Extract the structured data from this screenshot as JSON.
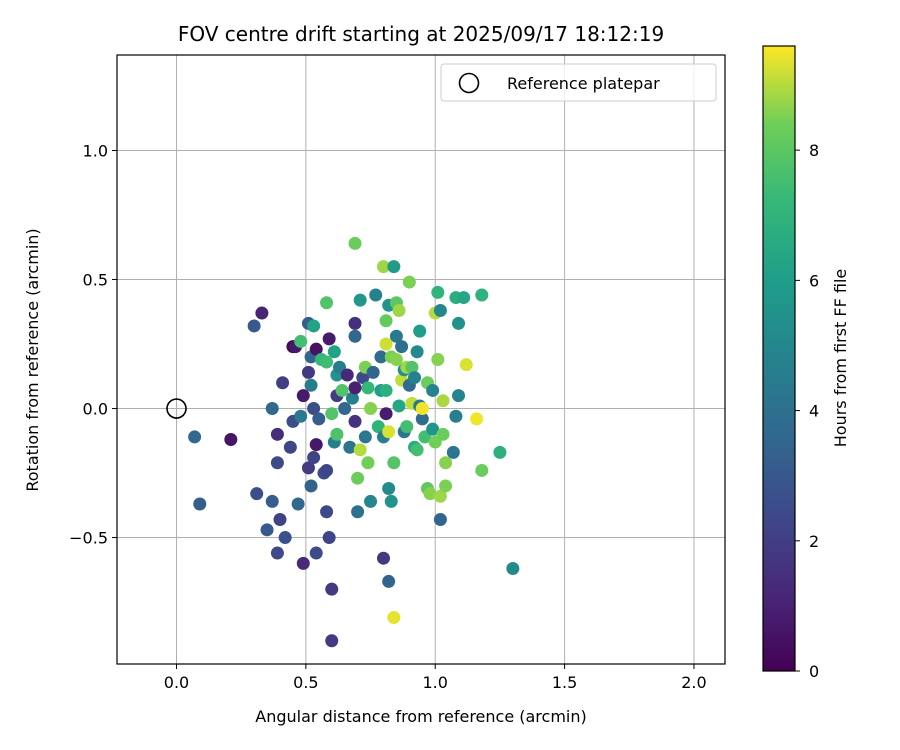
{
  "chart_data": {
    "type": "scatter",
    "title": "FOV centre drift starting at 2025/09/17 18:12:19",
    "xlabel": "Angular distance from reference (arcmin)",
    "ylabel": "Rotation from reference (arcmin)",
    "xlim": [
      -0.23,
      2.12
    ],
    "ylim": [
      -0.99,
      1.37
    ],
    "x_ticks": [
      0.0,
      0.5,
      1.0,
      1.5,
      2.0
    ],
    "x_tick_labels": [
      "0.0",
      "0.5",
      "1.0",
      "1.5",
      "2.0"
    ],
    "y_ticks": [
      -0.5,
      0.0,
      0.5,
      1.0
    ],
    "y_tick_labels": [
      "−0.5",
      "0.0",
      "0.5",
      "1.0"
    ],
    "grid": true,
    "colormap": "viridis",
    "colorbar": {
      "label": "Hours from first FF file",
      "range": [
        0,
        9.6
      ],
      "ticks": [
        0,
        2,
        4,
        6,
        8
      ],
      "tick_labels": [
        "0",
        "2",
        "4",
        "6",
        "8"
      ]
    },
    "legend": {
      "placement": "top-right",
      "entries": [
        "Reference platepar"
      ]
    },
    "reference_point": {
      "x": 0.0,
      "y": 0.0
    },
    "points": [
      {
        "x": 0.07,
        "y": -0.11,
        "h": 3.6
      },
      {
        "x": 0.09,
        "y": -0.37,
        "h": 3.2
      },
      {
        "x": 0.21,
        "y": -0.12,
        "h": 0.6
      },
      {
        "x": 0.3,
        "y": 0.32,
        "h": 3.0
      },
      {
        "x": 0.33,
        "y": 0.37,
        "h": 1.1
      },
      {
        "x": 0.31,
        "y": -0.33,
        "h": 2.6
      },
      {
        "x": 0.35,
        "y": -0.47,
        "h": 3.1
      },
      {
        "x": 0.37,
        "y": -0.36,
        "h": 3.2
      },
      {
        "x": 0.37,
        "y": 0.0,
        "h": 3.6
      },
      {
        "x": 0.39,
        "y": -0.1,
        "h": 1.4
      },
      {
        "x": 0.39,
        "y": -0.21,
        "h": 2.5
      },
      {
        "x": 0.4,
        "y": -0.43,
        "h": 2.2
      },
      {
        "x": 0.39,
        "y": -0.56,
        "h": 2.4
      },
      {
        "x": 0.41,
        "y": 0.1,
        "h": 2.0
      },
      {
        "x": 0.42,
        "y": -0.5,
        "h": 2.7
      },
      {
        "x": 0.44,
        "y": -0.15,
        "h": 2.3
      },
      {
        "x": 0.45,
        "y": -0.05,
        "h": 2.6
      },
      {
        "x": 0.45,
        "y": 0.24,
        "h": 0.2
      },
      {
        "x": 0.46,
        "y": 0.24,
        "h": 0.7
      },
      {
        "x": 0.47,
        "y": -0.37,
        "h": 3.6
      },
      {
        "x": 0.48,
        "y": 0.26,
        "h": 7.5
      },
      {
        "x": 0.48,
        "y": -0.03,
        "h": 4.4
      },
      {
        "x": 0.49,
        "y": 0.05,
        "h": 0.8
      },
      {
        "x": 0.49,
        "y": -0.6,
        "h": 1.3
      },
      {
        "x": 0.51,
        "y": 0.33,
        "h": 3.2
      },
      {
        "x": 0.51,
        "y": 0.14,
        "h": 1.8
      },
      {
        "x": 0.51,
        "y": -0.23,
        "h": 1.9
      },
      {
        "x": 0.52,
        "y": 0.2,
        "h": 3.5
      },
      {
        "x": 0.52,
        "y": -0.3,
        "h": 3.4
      },
      {
        "x": 0.52,
        "y": 0.09,
        "h": 4.5
      },
      {
        "x": 0.53,
        "y": 0.32,
        "h": 6.2
      },
      {
        "x": 0.53,
        "y": -0.19,
        "h": 2.2
      },
      {
        "x": 0.53,
        "y": 0.0,
        "h": 2.6
      },
      {
        "x": 0.54,
        "y": 0.23,
        "h": 0.5
      },
      {
        "x": 0.54,
        "y": -0.14,
        "h": 0.7
      },
      {
        "x": 0.54,
        "y": -0.56,
        "h": 2.5
      },
      {
        "x": 0.55,
        "y": -0.04,
        "h": 3.2
      },
      {
        "x": 0.56,
        "y": 0.19,
        "h": 7.2
      },
      {
        "x": 0.57,
        "y": -0.25,
        "h": 2.6
      },
      {
        "x": 0.58,
        "y": 0.18,
        "h": 7.4
      },
      {
        "x": 0.58,
        "y": 0.41,
        "h": 7.8
      },
      {
        "x": 0.58,
        "y": -0.24,
        "h": 2.3
      },
      {
        "x": 0.58,
        "y": -0.4,
        "h": 2.4
      },
      {
        "x": 0.59,
        "y": 0.27,
        "h": 0.8
      },
      {
        "x": 0.59,
        "y": -0.5,
        "h": 2.3
      },
      {
        "x": 0.6,
        "y": -0.9,
        "h": 1.9
      },
      {
        "x": 0.6,
        "y": -0.02,
        "h": 7.8
      },
      {
        "x": 0.6,
        "y": -0.7,
        "h": 1.8
      },
      {
        "x": 0.61,
        "y": 0.22,
        "h": 6.2
      },
      {
        "x": 0.61,
        "y": -0.13,
        "h": 4.7
      },
      {
        "x": 0.62,
        "y": 0.13,
        "h": 5.6
      },
      {
        "x": 0.62,
        "y": 0.05,
        "h": 1.9
      },
      {
        "x": 0.62,
        "y": -0.1,
        "h": 7.7
      },
      {
        "x": 0.63,
        "y": 0.16,
        "h": 4.6
      },
      {
        "x": 0.64,
        "y": 0.07,
        "h": 7.8
      },
      {
        "x": 0.65,
        "y": 0.0,
        "h": 3.6
      },
      {
        "x": 0.66,
        "y": 0.13,
        "h": 1.2
      },
      {
        "x": 0.67,
        "y": -0.15,
        "h": 4.1
      },
      {
        "x": 0.68,
        "y": 0.04,
        "h": 4.7
      },
      {
        "x": 0.69,
        "y": 0.33,
        "h": 1.5
      },
      {
        "x": 0.69,
        "y": 0.28,
        "h": 3.6
      },
      {
        "x": 0.69,
        "y": 0.08,
        "h": 1.0
      },
      {
        "x": 0.69,
        "y": -0.05,
        "h": 1.6
      },
      {
        "x": 0.69,
        "y": 0.64,
        "h": 8.3
      },
      {
        "x": 0.7,
        "y": -0.4,
        "h": 4.0
      },
      {
        "x": 0.7,
        "y": -0.27,
        "h": 8.3
      },
      {
        "x": 0.71,
        "y": 0.42,
        "h": 5.7
      },
      {
        "x": 0.71,
        "y": -0.16,
        "h": 9.0
      },
      {
        "x": 0.72,
        "y": 0.12,
        "h": 2.4
      },
      {
        "x": 0.73,
        "y": 0.16,
        "h": 8.5
      },
      {
        "x": 0.73,
        "y": -0.11,
        "h": 4.3
      },
      {
        "x": 0.74,
        "y": 0.08,
        "h": 7.2
      },
      {
        "x": 0.74,
        "y": -0.21,
        "h": 8.4
      },
      {
        "x": 0.75,
        "y": -0.36,
        "h": 5.0
      },
      {
        "x": 0.75,
        "y": 0.0,
        "h": 8.6
      },
      {
        "x": 0.76,
        "y": 0.14,
        "h": 3.5
      },
      {
        "x": 0.77,
        "y": 0.44,
        "h": 4.7
      },
      {
        "x": 0.78,
        "y": -0.07,
        "h": 7.0
      },
      {
        "x": 0.79,
        "y": 0.07,
        "h": 6.0
      },
      {
        "x": 0.79,
        "y": 0.2,
        "h": 3.8
      },
      {
        "x": 0.8,
        "y": -0.11,
        "h": 4.6
      },
      {
        "x": 0.8,
        "y": 0.55,
        "h": 8.8
      },
      {
        "x": 0.8,
        "y": -0.58,
        "h": 1.8
      },
      {
        "x": 0.81,
        "y": 0.25,
        "h": 9.2
      },
      {
        "x": 0.81,
        "y": 0.07,
        "h": 6.8
      },
      {
        "x": 0.81,
        "y": 0.34,
        "h": 8.2
      },
      {
        "x": 0.81,
        "y": -0.02,
        "h": 0.9
      },
      {
        "x": 0.82,
        "y": -0.09,
        "h": 9.3
      },
      {
        "x": 0.82,
        "y": -0.31,
        "h": 5.2
      },
      {
        "x": 0.82,
        "y": -0.67,
        "h": 3.5
      },
      {
        "x": 0.82,
        "y": 0.4,
        "h": 5.5
      },
      {
        "x": 0.83,
        "y": -0.36,
        "h": 5.5
      },
      {
        "x": 0.83,
        "y": 0.2,
        "h": 8.5
      },
      {
        "x": 0.84,
        "y": 0.55,
        "h": 5.9
      },
      {
        "x": 0.84,
        "y": -0.21,
        "h": 7.9
      },
      {
        "x": 0.84,
        "y": -0.81,
        "h": 9.4
      },
      {
        "x": 0.85,
        "y": 0.41,
        "h": 8.0
      },
      {
        "x": 0.85,
        "y": 0.28,
        "h": 4.4
      },
      {
        "x": 0.85,
        "y": 0.19,
        "h": 8.6
      },
      {
        "x": 0.86,
        "y": 0.38,
        "h": 8.8
      },
      {
        "x": 0.86,
        "y": 0.01,
        "h": 6.4
      },
      {
        "x": 0.87,
        "y": 0.11,
        "h": 9.1
      },
      {
        "x": 0.87,
        "y": 0.24,
        "h": 3.9
      },
      {
        "x": 0.88,
        "y": -0.09,
        "h": 4.2
      },
      {
        "x": 0.88,
        "y": 0.15,
        "h": 5.3
      },
      {
        "x": 0.89,
        "y": 0.16,
        "h": 8.8
      },
      {
        "x": 0.89,
        "y": -0.07,
        "h": 7.5
      },
      {
        "x": 0.9,
        "y": 0.49,
        "h": 8.5
      },
      {
        "x": 0.9,
        "y": 0.09,
        "h": 3.7
      },
      {
        "x": 0.91,
        "y": 0.02,
        "h": 9.1
      },
      {
        "x": 0.91,
        "y": 0.16,
        "h": 7.9
      },
      {
        "x": 0.92,
        "y": 0.12,
        "h": 4.7
      },
      {
        "x": 0.92,
        "y": -0.15,
        "h": 6.6
      },
      {
        "x": 0.93,
        "y": 0.22,
        "h": 5.1
      },
      {
        "x": 0.93,
        "y": -0.16,
        "h": 7.5
      },
      {
        "x": 0.94,
        "y": 0.01,
        "h": 4.4
      },
      {
        "x": 0.94,
        "y": 0.3,
        "h": 6.0
      },
      {
        "x": 0.95,
        "y": -0.04,
        "h": 3.8
      },
      {
        "x": 0.95,
        "y": 0.0,
        "h": 9.5
      },
      {
        "x": 0.96,
        "y": -0.11,
        "h": 7.5
      },
      {
        "x": 0.97,
        "y": -0.31,
        "h": 8.1
      },
      {
        "x": 0.97,
        "y": 0.1,
        "h": 8.3
      },
      {
        "x": 0.98,
        "y": -0.33,
        "h": 8.6
      },
      {
        "x": 0.99,
        "y": 0.07,
        "h": 4.8
      },
      {
        "x": 0.99,
        "y": -0.08,
        "h": 5.6
      },
      {
        "x": 1.0,
        "y": 0.37,
        "h": 9.0
      },
      {
        "x": 1.0,
        "y": -0.13,
        "h": 8.4
      },
      {
        "x": 1.01,
        "y": 0.19,
        "h": 8.6
      },
      {
        "x": 1.01,
        "y": 0.45,
        "h": 7.0
      },
      {
        "x": 1.02,
        "y": -0.43,
        "h": 3.5
      },
      {
        "x": 1.02,
        "y": 0.38,
        "h": 5.0
      },
      {
        "x": 1.02,
        "y": -0.34,
        "h": 8.8
      },
      {
        "x": 1.03,
        "y": 0.03,
        "h": 8.9
      },
      {
        "x": 1.03,
        "y": -0.1,
        "h": 8.3
      },
      {
        "x": 1.04,
        "y": -0.21,
        "h": 8.6
      },
      {
        "x": 1.04,
        "y": -0.3,
        "h": 8.5
      },
      {
        "x": 1.07,
        "y": -0.17,
        "h": 4.2
      },
      {
        "x": 1.08,
        "y": -0.03,
        "h": 4.6
      },
      {
        "x": 1.08,
        "y": 0.43,
        "h": 6.7
      },
      {
        "x": 1.09,
        "y": 0.05,
        "h": 4.9
      },
      {
        "x": 1.09,
        "y": 0.33,
        "h": 5.4
      },
      {
        "x": 1.11,
        "y": 0.43,
        "h": 6.4
      },
      {
        "x": 1.12,
        "y": 0.17,
        "h": 9.3
      },
      {
        "x": 1.16,
        "y": -0.04,
        "h": 9.5
      },
      {
        "x": 1.18,
        "y": -0.24,
        "h": 8.3
      },
      {
        "x": 1.18,
        "y": 0.44,
        "h": 6.9
      },
      {
        "x": 1.25,
        "y": -0.17,
        "h": 6.8
      },
      {
        "x": 1.3,
        "y": -0.62,
        "h": 5.2
      }
    ]
  }
}
